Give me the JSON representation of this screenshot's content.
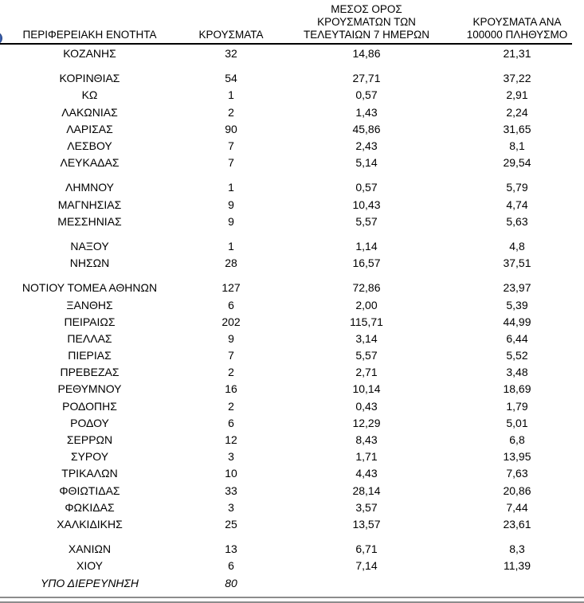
{
  "page": {
    "accent_color": "#3a5fae",
    "rule_color": "#8c8c8c"
  },
  "table": {
    "headers": {
      "col1": "ΠΕΡΙΦΕΡΕΙΑΚΗ ΕΝΟΤΗΤΑ",
      "col2": "ΚΡΟΥΣΜΑΤΑ",
      "col3_lines": [
        "ΜΕΣΟΣ ΟΡΟΣ",
        "ΚΡΟΥΣΜΑΤΩΝ ΤΩΝ",
        "ΤΕΛΕΥΤΑΙΩΝ 7 ΗΜΕΡΩΝ"
      ],
      "col4_lines": [
        "ΚΡΟΥΣΜΑΤΑ ΑΝΑ",
        "100000 ΠΛΗΘΥΣΜΟ"
      ]
    },
    "rows": [
      {
        "name": "ΚΟΖΑΝΗΣ",
        "cases": "32",
        "avg7": "14,86",
        "per100k": "21,31"
      },
      {
        "name": "ΚΟΡΙΝΘΙΑΣ",
        "cases": "54",
        "avg7": "27,71",
        "per100k": "37,22",
        "gap_before": true
      },
      {
        "name": "ΚΩ",
        "cases": "1",
        "avg7": "0,57",
        "per100k": "2,91"
      },
      {
        "name": "ΛΑΚΩΝΙΑΣ",
        "cases": "2",
        "avg7": "1,43",
        "per100k": "2,24"
      },
      {
        "name": "ΛΑΡΙΣΑΣ",
        "cases": "90",
        "avg7": "45,86",
        "per100k": "31,65"
      },
      {
        "name": "ΛΕΣΒΟΥ",
        "cases": "7",
        "avg7": "2,43",
        "per100k": "8,1"
      },
      {
        "name": "ΛΕΥΚΑΔΑΣ",
        "cases": "7",
        "avg7": "5,14",
        "per100k": "29,54"
      },
      {
        "name": "ΛΗΜΝΟΥ",
        "cases": "1",
        "avg7": "0,57",
        "per100k": "5,79",
        "gap_before": true
      },
      {
        "name": "ΜΑΓΝΗΣΙΑΣ",
        "cases": "9",
        "avg7": "10,43",
        "per100k": "4,74"
      },
      {
        "name": "ΜΕΣΣΗΝΙΑΣ",
        "cases": "9",
        "avg7": "5,57",
        "per100k": "5,63"
      },
      {
        "name": "ΝΑΞΟΥ",
        "cases": "1",
        "avg7": "1,14",
        "per100k": "4,8",
        "gap_before": true
      },
      {
        "name": "ΝΗΣΩΝ",
        "cases": "28",
        "avg7": "16,57",
        "per100k": "37,51"
      },
      {
        "name": "ΝΟΤΙΟΥ ΤΟΜΕΑ ΑΘΗΝΩΝ",
        "cases": "127",
        "avg7": "72,86",
        "per100k": "23,97",
        "gap_before": true
      },
      {
        "name": "ΞΑΝΘΗΣ",
        "cases": "6",
        "avg7": "2,00",
        "per100k": "5,39"
      },
      {
        "name": "ΠΕΙΡΑΙΩΣ",
        "cases": "202",
        "avg7": "115,71",
        "per100k": "44,99"
      },
      {
        "name": "ΠΕΛΛΑΣ",
        "cases": "9",
        "avg7": "3,14",
        "per100k": "6,44"
      },
      {
        "name": "ΠΙΕΡΙΑΣ",
        "cases": "7",
        "avg7": "5,57",
        "per100k": "5,52"
      },
      {
        "name": "ΠΡΕΒΕΖΑΣ",
        "cases": "2",
        "avg7": "2,71",
        "per100k": "3,48"
      },
      {
        "name": "ΡΕΘΥΜΝΟΥ",
        "cases": "16",
        "avg7": "10,14",
        "per100k": "18,69"
      },
      {
        "name": "ΡΟΔΟΠΗΣ",
        "cases": "2",
        "avg7": "0,43",
        "per100k": "1,79"
      },
      {
        "name": "ΡΟΔΟΥ",
        "cases": "6",
        "avg7": "12,29",
        "per100k": "5,01"
      },
      {
        "name": "ΣΕΡΡΩΝ",
        "cases": "12",
        "avg7": "8,43",
        "per100k": "6,8"
      },
      {
        "name": "ΣΥΡΟΥ",
        "cases": "3",
        "avg7": "1,71",
        "per100k": "13,95"
      },
      {
        "name": "ΤΡΙΚΑΛΩΝ",
        "cases": "10",
        "avg7": "4,43",
        "per100k": "7,63"
      },
      {
        "name": "ΦΘΙΩΤΙΔΑΣ",
        "cases": "33",
        "avg7": "28,14",
        "per100k": "20,86"
      },
      {
        "name": "ΦΩΚΙΔΑΣ",
        "cases": "3",
        "avg7": "3,57",
        "per100k": "7,44"
      },
      {
        "name": "ΧΑΛΚΙΔΙΚΗΣ",
        "cases": "25",
        "avg7": "13,57",
        "per100k": "23,61"
      },
      {
        "name": "ΧΑΝΙΩΝ",
        "cases": "13",
        "avg7": "6,71",
        "per100k": "8,3",
        "gap_before": true
      },
      {
        "name": "ΧΙΟΥ",
        "cases": "6",
        "avg7": "7,14",
        "per100k": "11,39"
      },
      {
        "name": "ΥΠΟ ΔΙΕΡΕΥΝΗΣΗ",
        "cases": "80",
        "avg7": "",
        "per100k": "",
        "italic": true
      }
    ]
  }
}
